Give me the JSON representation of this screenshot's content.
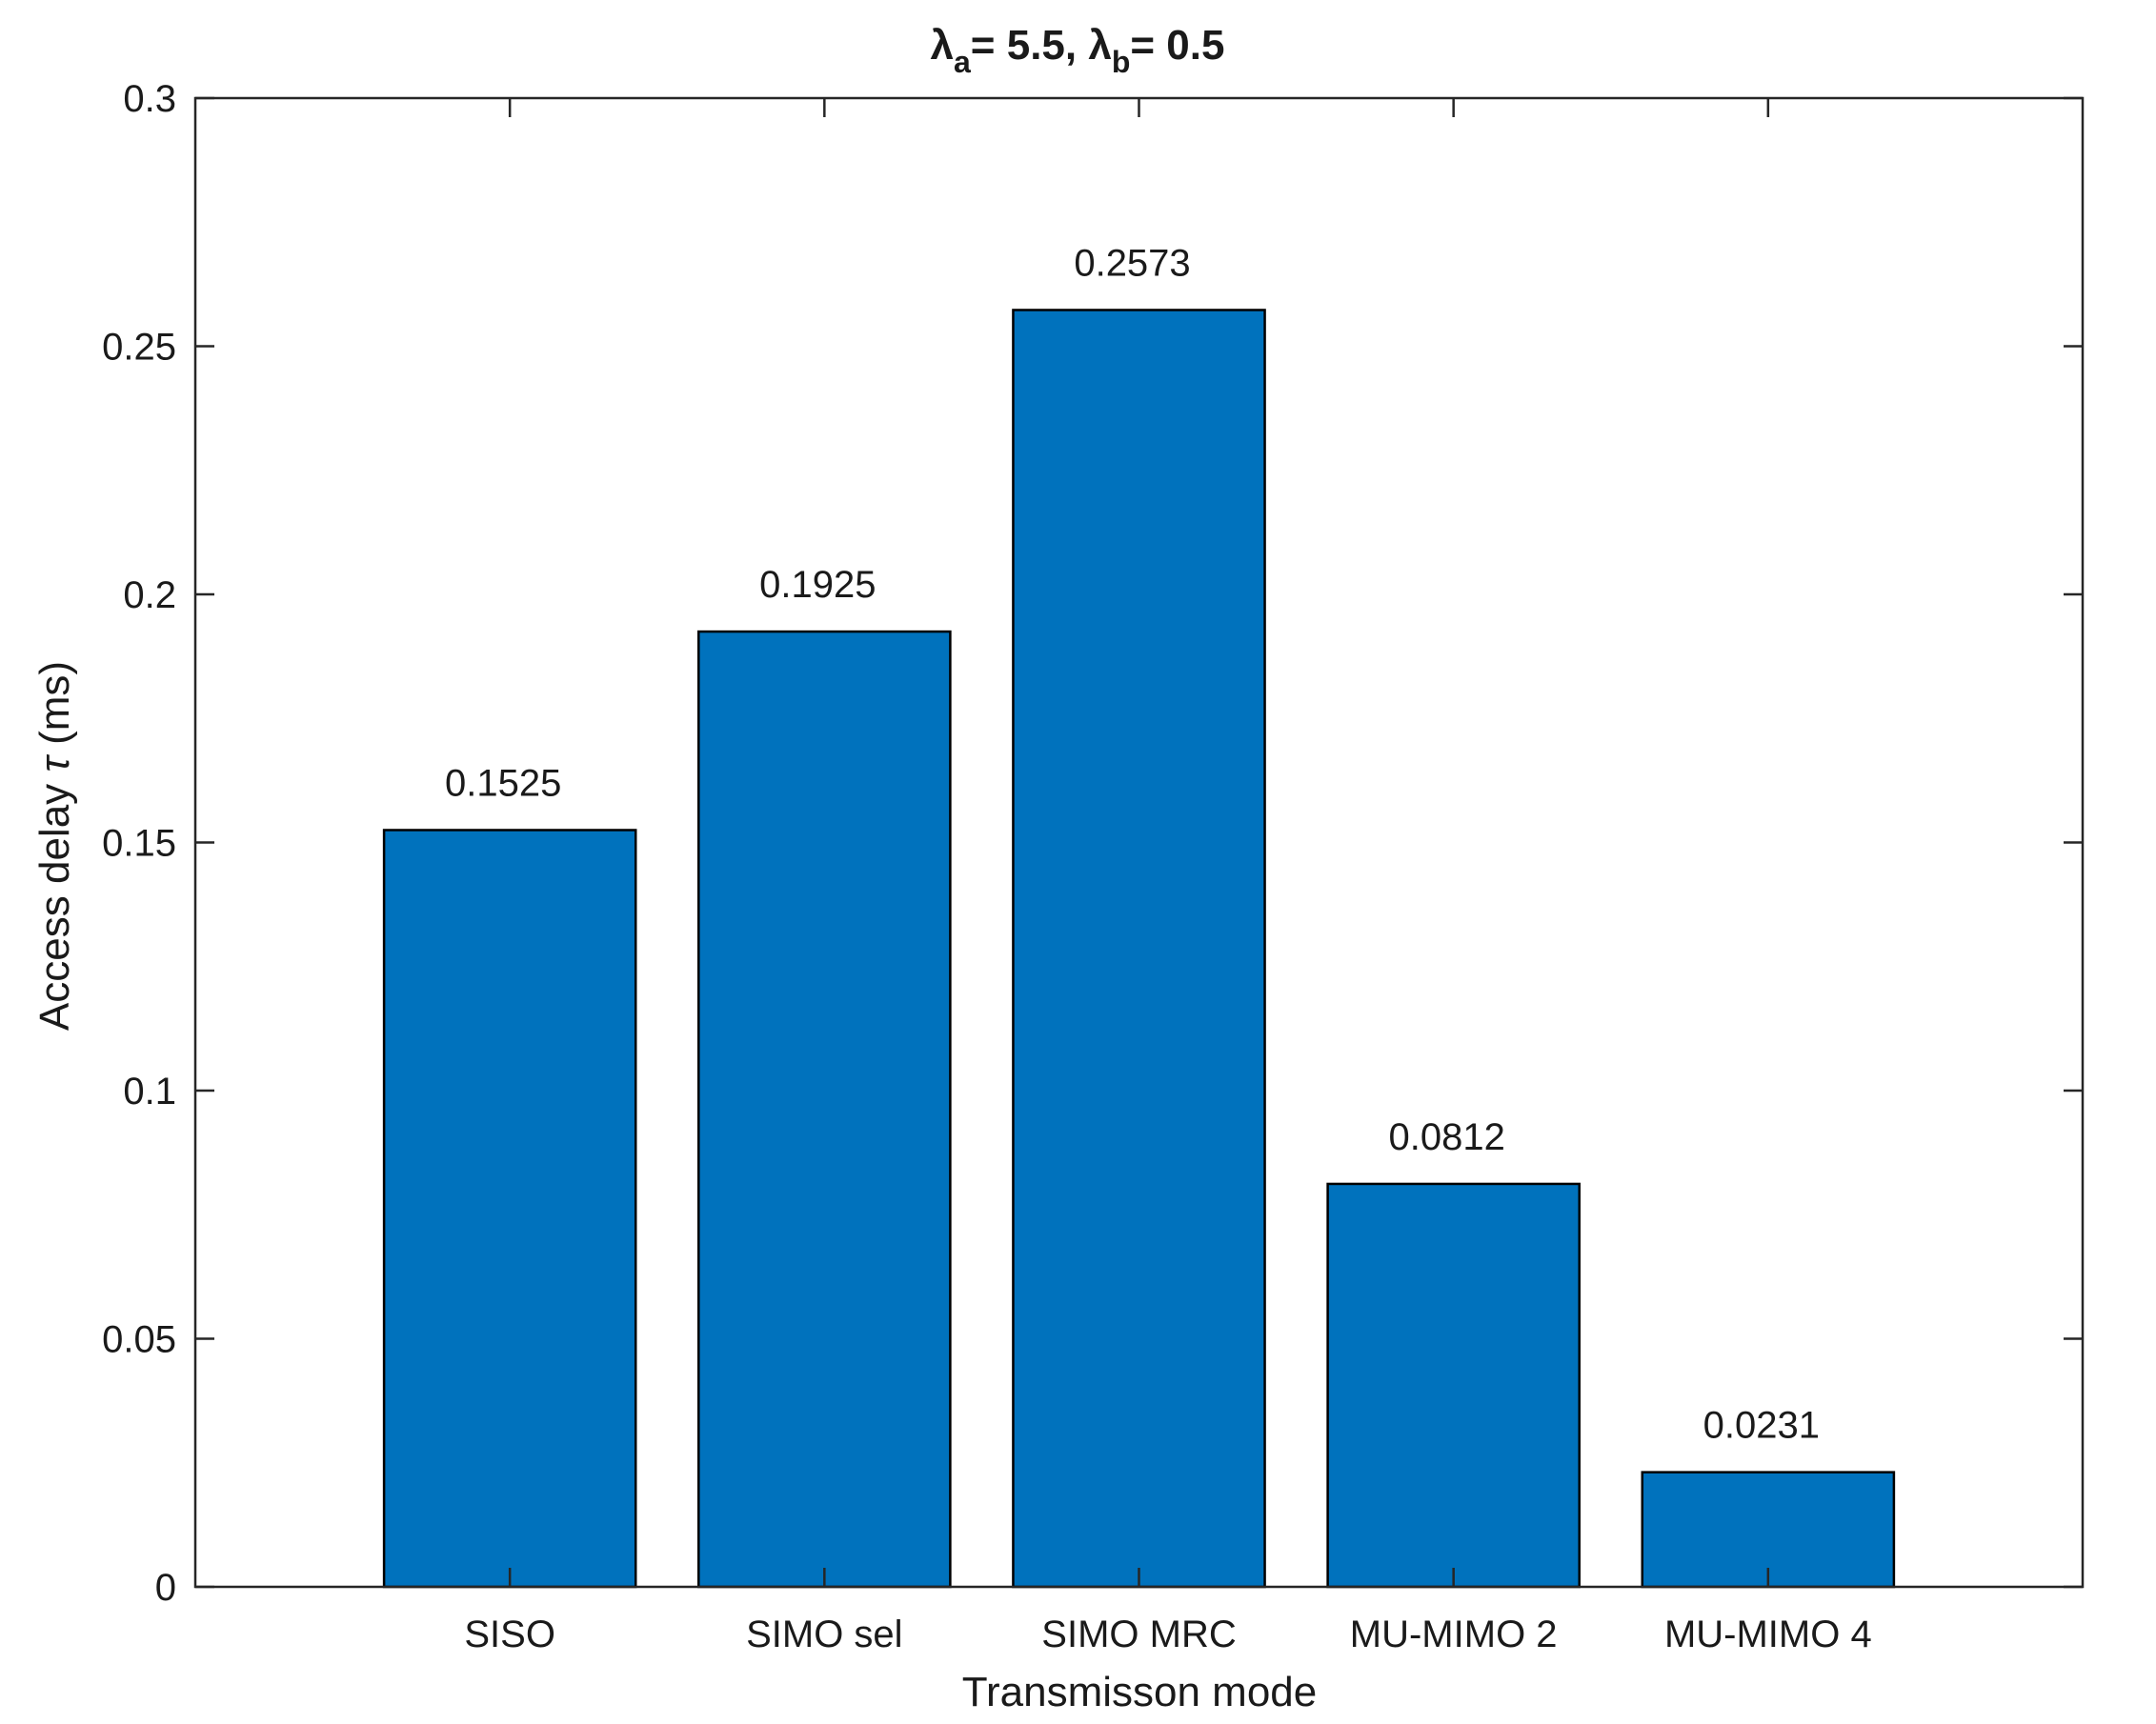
{
  "chart_data": {
    "type": "bar",
    "title": {
      "lambda_a_symbol": "λ",
      "lambda_a_sub": "a",
      "lambda_a_value": "= 5.5, ",
      "lambda_b_symbol": "λ",
      "lambda_b_sub": "b",
      "lambda_b_value": "= 0.5"
    },
    "xlabel": "Transmisson mode",
    "ylabel": {
      "prefix": "Access delay ",
      "symbol": "τ",
      "suffix": " (ms)"
    },
    "categories": [
      "SISO",
      "SIMO sel",
      "SIMO MRC",
      "MU-MIMO 2",
      "MU-MIMO 4"
    ],
    "values": [
      0.1525,
      0.1925,
      0.2573,
      0.0812,
      0.0231
    ],
    "data_labels": [
      "0.1525",
      "0.1925",
      "0.2573",
      "0.0812",
      "0.0231"
    ],
    "xlim": [
      0,
      6
    ],
    "ylim": [
      0,
      0.3
    ],
    "yticks": [
      0,
      0.05,
      0.1,
      0.15,
      0.2,
      0.25,
      0.3
    ],
    "ytick_labels": [
      "0",
      "0.05",
      "0.1",
      "0.15",
      "0.2",
      "0.25",
      "0.3"
    ],
    "grid": false,
    "bar_color": "#0072bd",
    "edge_color": "#000000"
  }
}
